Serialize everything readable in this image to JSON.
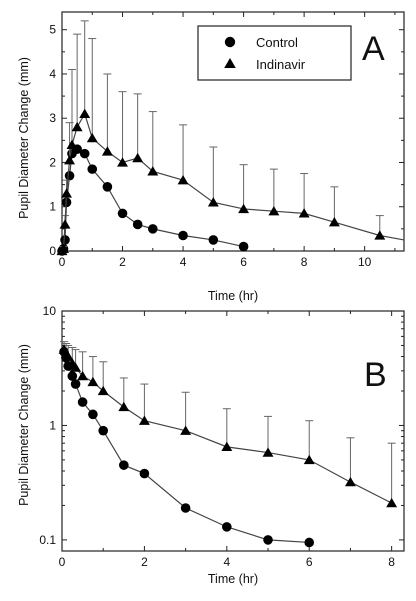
{
  "chart_data": [
    {
      "panel": "A",
      "type": "line",
      "scale": "linear",
      "xlabel": "Time (hr)",
      "ylabel": "Pupil Diameter Change (mm)",
      "xlim": [
        0,
        11.3
      ],
      "ylim": [
        0,
        5.4
      ],
      "xticks": [
        0,
        2,
        4,
        6,
        8,
        10
      ],
      "yticks": [
        0,
        1,
        2,
        3,
        4,
        5
      ],
      "legend": {
        "position": "top-right",
        "entries": [
          "Control",
          "Indinavir"
        ]
      },
      "series": [
        {
          "name": "Control",
          "marker": "circle",
          "x": [
            0,
            0.05,
            0.1,
            0.15,
            0.25,
            0.33,
            0.5,
            0.75,
            1,
            1.5,
            2,
            2.5,
            3,
            4,
            5,
            6
          ],
          "y": [
            0,
            0.05,
            0.25,
            1.1,
            1.7,
            2.2,
            2.3,
            2.2,
            1.85,
            1.45,
            0.85,
            0.6,
            0.5,
            0.35,
            0.25,
            0.1
          ]
        },
        {
          "name": "Indinavir",
          "marker": "triangle",
          "x": [
            0,
            0.05,
            0.1,
            0.15,
            0.25,
            0.33,
            0.5,
            0.75,
            1,
            1.5,
            2,
            2.5,
            3,
            4,
            5,
            6,
            7,
            8,
            9,
            10.5
          ],
          "y": [
            0,
            0.05,
            0.6,
            1.3,
            2.05,
            2.4,
            2.8,
            3.1,
            2.55,
            2.25,
            2.0,
            2.1,
            1.8,
            1.6,
            1.1,
            0.95,
            0.9,
            0.85,
            0.65,
            0.35
          ],
          "error_upper": [
            0,
            0.1,
            0.8,
            1.6,
            2.9,
            4.1,
            4.9,
            5.2,
            4.8,
            4.0,
            3.6,
            3.55,
            3.15,
            2.85,
            2.35,
            1.95,
            1.85,
            1.75,
            1.45,
            0.8
          ],
          "tail_to": [
            11.3,
            0.25
          ]
        }
      ]
    },
    {
      "panel": "B",
      "type": "line",
      "scale": "log",
      "xlabel": "Time (hr)",
      "ylabel": "Pupil Diameter Change (mm)",
      "xlim": [
        0,
        8.3
      ],
      "ylim": [
        0.08,
        10
      ],
      "xticks": [
        0,
        2,
        4,
        6,
        8
      ],
      "yticks": [
        0.1,
        1,
        10
      ],
      "ytick_labels": [
        "0.1",
        "1",
        "10"
      ],
      "series": [
        {
          "name": "Control",
          "marker": "circle",
          "x": [
            0.05,
            0.1,
            0.15,
            0.25,
            0.33,
            0.5,
            0.75,
            1,
            1.5,
            2,
            3,
            4,
            5,
            6
          ],
          "y": [
            4.4,
            3.9,
            3.3,
            2.7,
            2.3,
            1.6,
            1.25,
            0.9,
            0.45,
            0.38,
            0.19,
            0.13,
            0.1,
            0.095
          ]
        },
        {
          "name": "Indinavir",
          "marker": "triangle",
          "x": [
            0.05,
            0.1,
            0.15,
            0.25,
            0.33,
            0.5,
            0.75,
            1,
            1.5,
            2,
            3,
            4,
            5,
            6,
            7,
            8
          ],
          "y": [
            4.6,
            4.2,
            4.0,
            3.5,
            3.2,
            2.7,
            2.4,
            2.0,
            1.45,
            1.1,
            0.9,
            0.65,
            0.58,
            0.5,
            0.32,
            0.21
          ],
          "error_upper": [
            5.4,
            5.2,
            5.0,
            4.8,
            4.6,
            4.4,
            4.0,
            3.6,
            2.6,
            2.3,
            1.95,
            1.4,
            1.2,
            1.1,
            0.78,
            0.7
          ]
        }
      ]
    }
  ]
}
